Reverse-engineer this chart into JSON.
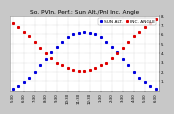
{
  "title": "So. PVIn. Perf.: Sun Alt./Pnl Inc. Angle",
  "legend_blue": "SUN ALT.",
  "legend_red": "INC. ANGLE",
  "background": "#c8c8c8",
  "plot_bg": "#ffffff",
  "blue_color": "#0000dd",
  "red_color": "#dd0000",
  "x_labels": [
    "5:30",
    "6:00",
    "6:30",
    "7:00",
    "7:30",
    "8:00",
    "8:30",
    "9:00",
    "9:30",
    "10:00",
    "10:30",
    "11:00",
    "11:30",
    "12:00",
    "12:30",
    "1:00",
    "1:30",
    "2:00",
    "2:30",
    "3:00",
    "3:30",
    "4:00",
    "4:30",
    "5:00",
    "5:30",
    "6:00",
    "6:30"
  ],
  "blue_x": [
    0,
    1,
    2,
    3,
    4,
    5,
    6,
    7,
    8,
    9,
    10,
    11,
    12,
    13,
    14,
    15,
    16,
    17,
    18,
    19,
    20,
    21,
    22,
    23,
    24,
    25,
    26
  ],
  "blue_y": [
    2,
    5,
    9,
    14,
    20,
    27,
    34,
    41,
    47,
    52,
    57,
    60,
    62,
    63,
    62,
    60,
    57,
    52,
    47,
    41,
    34,
    27,
    20,
    14,
    9,
    5,
    2
  ],
  "red_x": [
    0,
    1,
    2,
    3,
    4,
    5,
    6,
    7,
    8,
    9,
    10,
    11,
    12,
    13,
    14,
    15,
    16,
    17,
    18,
    19,
    20,
    21,
    22,
    23,
    24,
    25,
    26
  ],
  "red_y": [
    72,
    68,
    63,
    58,
    52,
    46,
    40,
    35,
    30,
    27,
    24,
    22,
    21,
    21,
    22,
    24,
    27,
    30,
    35,
    40,
    46,
    52,
    58,
    63,
    68,
    72,
    76
  ],
  "ylim_min": 0,
  "ylim_max": 80,
  "ytick_positions": [
    10,
    20,
    30,
    40,
    50,
    60,
    70,
    80
  ],
  "ytick_labels": [
    "1.",
    "2.",
    "3.",
    "4.",
    "5.",
    "6.",
    "7.",
    "8."
  ],
  "grid_color": "#aaaaaa",
  "title_fontsize": 4.2,
  "tick_fontsize": 2.8,
  "legend_fontsize": 3.2,
  "marker_size": 1.2,
  "dot_marker": "s"
}
